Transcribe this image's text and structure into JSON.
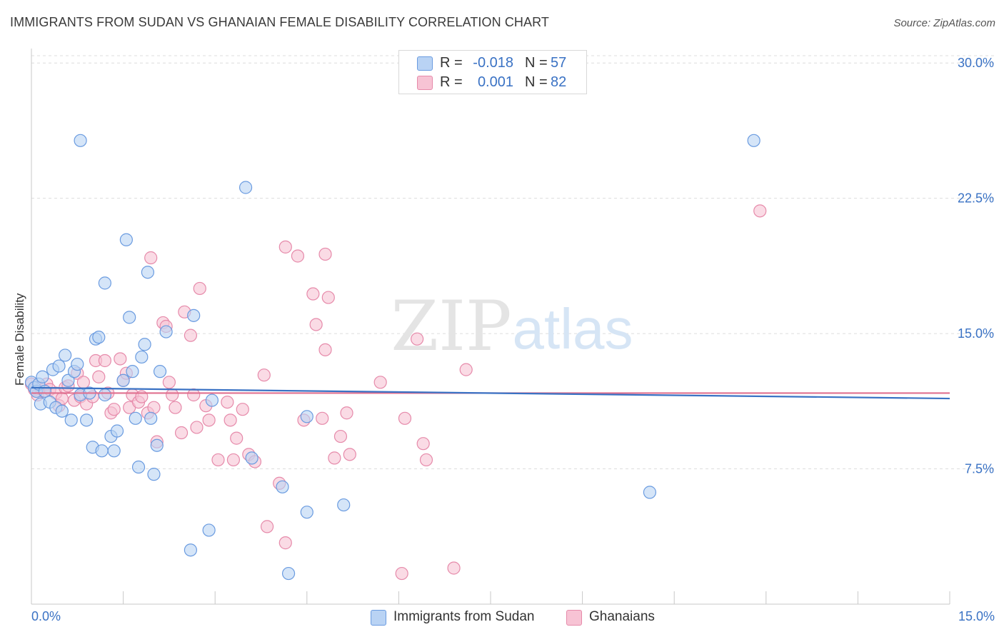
{
  "header": {
    "title": "IMMIGRANTS FROM SUDAN VS GHANAIAN FEMALE DISABILITY CORRELATION CHART",
    "source": "Source: ZipAtlas.com"
  },
  "legend_top": {
    "rows": [
      {
        "r_label": "R =",
        "r_value": "-0.018",
        "n_label": "N =",
        "n_value": "57"
      },
      {
        "r_label": "R =",
        "r_value": "0.001",
        "n_label": "N =",
        "n_value": "82"
      }
    ]
  },
  "legend_bottom": {
    "items": [
      "Immigrants from Sudan",
      "Ghanaians"
    ]
  },
  "watermark": {
    "zip": "ZIP",
    "atlas": "atlas"
  },
  "colors": {
    "blue_fill": "#b9d3f4",
    "blue_stroke": "#6a9be0",
    "blue_line": "#3a72c4",
    "pink_fill": "#f7c3d4",
    "pink_stroke": "#e68aaa",
    "pink_line": "#e0708f",
    "tick_label": "#3a72c4",
    "grid": "#dddddd"
  },
  "chart_data": {
    "type": "scatter",
    "title": "IMMIGRANTS FROM SUDAN VS GHANAIAN FEMALE DISABILITY CORRELATION CHART",
    "xlabel": "",
    "ylabel": "Female Disability",
    "xlim": [
      0,
      15
    ],
    "ylim": [
      0,
      30.8
    ],
    "x_tick_labels": [
      "0.0%",
      "15.0%"
    ],
    "y_ticks": [
      7.5,
      15.0,
      22.5,
      30.0
    ],
    "y_tick_labels": [
      "7.5%",
      "15.0%",
      "22.5%",
      "30.0%"
    ],
    "grid": "horizontal dashed",
    "legend_position": "top-center and bottom",
    "series": [
      {
        "name": "Immigrants from Sudan",
        "r": -0.018,
        "n": 57,
        "trend": {
          "x": [
            0,
            15
          ],
          "y": [
            12.0,
            11.4
          ]
        },
        "points": [
          [
            0.0,
            12.3
          ],
          [
            0.05,
            12.0
          ],
          [
            0.08,
            11.8
          ],
          [
            0.12,
            12.2
          ],
          [
            0.15,
            11.1
          ],
          [
            0.18,
            12.6
          ],
          [
            0.22,
            11.8
          ],
          [
            0.3,
            11.2
          ],
          [
            0.35,
            13.0
          ],
          [
            0.4,
            10.9
          ],
          [
            0.45,
            13.2
          ],
          [
            0.5,
            10.7
          ],
          [
            0.55,
            13.8
          ],
          [
            0.6,
            12.4
          ],
          [
            0.65,
            10.2
          ],
          [
            0.7,
            12.9
          ],
          [
            0.75,
            13.3
          ],
          [
            0.8,
            11.6
          ],
          [
            0.9,
            10.2
          ],
          [
            0.95,
            11.7
          ],
          [
            1.0,
            8.7
          ],
          [
            1.05,
            14.7
          ],
          [
            1.1,
            14.8
          ],
          [
            1.15,
            8.5
          ],
          [
            1.2,
            11.6
          ],
          [
            1.3,
            9.3
          ],
          [
            1.35,
            8.5
          ],
          [
            1.4,
            9.6
          ],
          [
            1.5,
            12.4
          ],
          [
            1.6,
            15.9
          ],
          [
            1.65,
            12.9
          ],
          [
            1.7,
            10.3
          ],
          [
            1.75,
            7.6
          ],
          [
            1.8,
            13.7
          ],
          [
            1.85,
            14.4
          ],
          [
            1.95,
            10.3
          ],
          [
            2.0,
            7.2
          ],
          [
            2.05,
            8.8
          ],
          [
            2.2,
            15.1
          ],
          [
            1.55,
            20.2
          ],
          [
            1.9,
            18.4
          ],
          [
            1.2,
            17.8
          ],
          [
            0.8,
            25.7
          ],
          [
            2.65,
            16.0
          ],
          [
            2.95,
            11.3
          ],
          [
            3.5,
            23.1
          ],
          [
            3.6,
            8.1
          ],
          [
            4.1,
            6.5
          ],
          [
            4.2,
            1.7
          ],
          [
            4.5,
            10.4
          ],
          [
            4.5,
            5.1
          ],
          [
            5.1,
            5.5
          ],
          [
            2.9,
            4.1
          ],
          [
            2.6,
            3.0
          ],
          [
            10.1,
            6.2
          ],
          [
            11.8,
            25.7
          ],
          [
            2.1,
            12.9
          ]
        ]
      },
      {
        "name": "Ghanaians",
        "r": 0.001,
        "n": 82,
        "trend": {
          "x": [
            0,
            15
          ],
          "y": [
            11.7,
            11.7
          ]
        },
        "points": [
          [
            0.0,
            12.2
          ],
          [
            0.05,
            11.9
          ],
          [
            0.1,
            11.6
          ],
          [
            0.15,
            12.0
          ],
          [
            0.2,
            11.8
          ],
          [
            0.25,
            12.2
          ],
          [
            0.3,
            11.9
          ],
          [
            0.4,
            11.7
          ],
          [
            0.45,
            11.0
          ],
          [
            0.5,
            11.4
          ],
          [
            0.55,
            12.0
          ],
          [
            0.6,
            12.1
          ],
          [
            0.7,
            11.3
          ],
          [
            0.75,
            12.8
          ],
          [
            0.8,
            11.5
          ],
          [
            0.85,
            12.3
          ],
          [
            0.9,
            11.1
          ],
          [
            1.0,
            11.5
          ],
          [
            1.05,
            13.5
          ],
          [
            1.1,
            12.6
          ],
          [
            1.2,
            13.5
          ],
          [
            1.25,
            11.7
          ],
          [
            1.3,
            10.6
          ],
          [
            1.35,
            10.8
          ],
          [
            1.45,
            13.6
          ],
          [
            1.5,
            12.4
          ],
          [
            1.55,
            12.8
          ],
          [
            1.6,
            10.9
          ],
          [
            1.65,
            11.6
          ],
          [
            1.75,
            11.2
          ],
          [
            1.8,
            11.5
          ],
          [
            1.9,
            10.6
          ],
          [
            1.95,
            19.2
          ],
          [
            2.0,
            10.9
          ],
          [
            2.05,
            9.0
          ],
          [
            2.15,
            15.6
          ],
          [
            2.2,
            15.4
          ],
          [
            2.25,
            12.3
          ],
          [
            2.3,
            11.6
          ],
          [
            2.35,
            10.9
          ],
          [
            2.45,
            9.5
          ],
          [
            2.5,
            16.2
          ],
          [
            2.6,
            14.9
          ],
          [
            2.65,
            11.6
          ],
          [
            2.7,
            9.8
          ],
          [
            2.75,
            17.5
          ],
          [
            2.85,
            11.0
          ],
          [
            2.9,
            10.2
          ],
          [
            3.05,
            8.0
          ],
          [
            3.2,
            11.2
          ],
          [
            3.25,
            10.2
          ],
          [
            3.3,
            8.0
          ],
          [
            3.35,
            9.2
          ],
          [
            3.45,
            10.8
          ],
          [
            3.55,
            8.3
          ],
          [
            3.65,
            7.9
          ],
          [
            3.8,
            12.7
          ],
          [
            4.05,
            6.7
          ],
          [
            4.15,
            3.4
          ],
          [
            4.15,
            19.8
          ],
          [
            4.35,
            19.3
          ],
          [
            4.45,
            10.2
          ],
          [
            4.6,
            17.2
          ],
          [
            4.65,
            15.5
          ],
          [
            4.75,
            10.3
          ],
          [
            4.8,
            14.1
          ],
          [
            4.8,
            19.4
          ],
          [
            4.85,
            17.0
          ],
          [
            4.95,
            8.1
          ],
          [
            5.05,
            9.3
          ],
          [
            5.15,
            10.6
          ],
          [
            5.2,
            8.3
          ],
          [
            5.7,
            12.3
          ],
          [
            6.05,
            1.7
          ],
          [
            6.1,
            10.3
          ],
          [
            6.3,
            14.7
          ],
          [
            6.4,
            8.9
          ],
          [
            6.45,
            8.0
          ],
          [
            6.9,
            2.0
          ],
          [
            7.1,
            13.0
          ],
          [
            3.85,
            4.3
          ],
          [
            11.9,
            21.8
          ]
        ]
      }
    ]
  }
}
